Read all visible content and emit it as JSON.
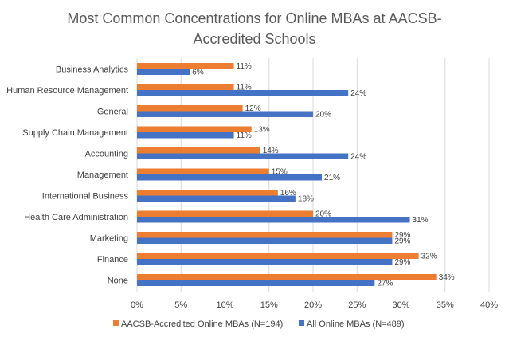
{
  "chart_data": {
    "type": "bar",
    "orientation": "horizontal",
    "title_lines": [
      "Most Common Concentrations for Online MBAs at AACSB-",
      "Accredited Schools"
    ],
    "categories": [
      "Business Analytics",
      "Human Resource Management",
      "General",
      "Supply Chain Management",
      "Accounting",
      "Management",
      "International Business",
      "Health Care Administration",
      "Marketing",
      "Finance",
      "None"
    ],
    "series": [
      {
        "name": "AACSB-Accredited Online MBAs (N=194)",
        "color": "#ED7D31",
        "values": [
          11,
          11,
          12,
          13,
          14,
          15,
          16,
          20,
          29,
          32,
          34
        ]
      },
      {
        "name": "All Online MBAs (N=489)",
        "color": "#4472C4",
        "values": [
          6,
          24,
          20,
          11,
          24,
          21,
          18,
          31,
          29,
          29,
          27
        ]
      }
    ],
    "value_labels": [
      [
        "11%",
        "11%",
        "12%",
        "13%",
        "14%",
        "15%",
        "16%",
        "20%",
        "29%",
        "32%",
        "34%"
      ],
      [
        "6%",
        "24%",
        "20%",
        "11%",
        "24%",
        "21%",
        "18%",
        "31%",
        "29%",
        "29%",
        "27%"
      ]
    ],
    "xticks": [
      0,
      5,
      10,
      15,
      20,
      25,
      30,
      35,
      40
    ],
    "xtick_labels": [
      "0%",
      "5%",
      "10%",
      "15%",
      "20%",
      "25%",
      "30%",
      "35%",
      "40%"
    ],
    "xlim": [
      0,
      40
    ],
    "grid": true,
    "legend_position": "bottom"
  }
}
